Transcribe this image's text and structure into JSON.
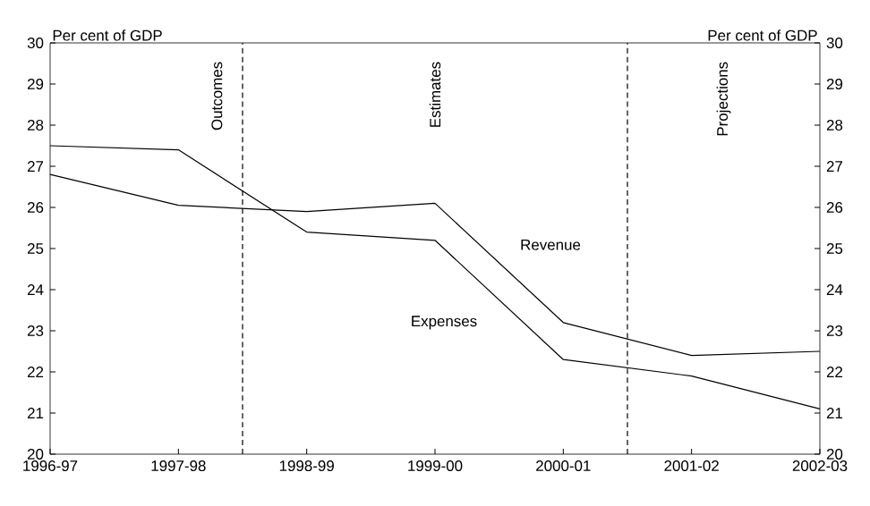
{
  "chart_data": {
    "type": "line",
    "categories": [
      "1996-97",
      "1997-98",
      "1998-99",
      "1999-00",
      "2000-01",
      "2001-02",
      "2002-03"
    ],
    "series": [
      {
        "name": "Revenue",
        "color": "#000000",
        "values": [
          26.8,
          26.05,
          25.9,
          26.1,
          23.2,
          22.4,
          22.5
        ]
      },
      {
        "name": "Expenses",
        "color": "#000000",
        "values": [
          27.5,
          27.4,
          25.4,
          25.2,
          22.3,
          21.9,
          21.1
        ]
      }
    ],
    "ylabel": "Per cent of GDP",
    "y2label": "Per cent of GDP",
    "ylim": [
      20,
      30
    ],
    "yticks": [
      20,
      21,
      22,
      23,
      24,
      25,
      26,
      27,
      28,
      29,
      30
    ],
    "y2lim": [
      20,
      30
    ],
    "y2ticks": [
      20,
      21,
      22,
      23,
      24,
      25,
      26,
      27,
      28,
      29,
      30
    ],
    "annotations": [
      "Outcomes",
      "Estimates",
      "Projections"
    ],
    "legend": false,
    "grid": false,
    "marker": "none",
    "line_style": "solid"
  }
}
